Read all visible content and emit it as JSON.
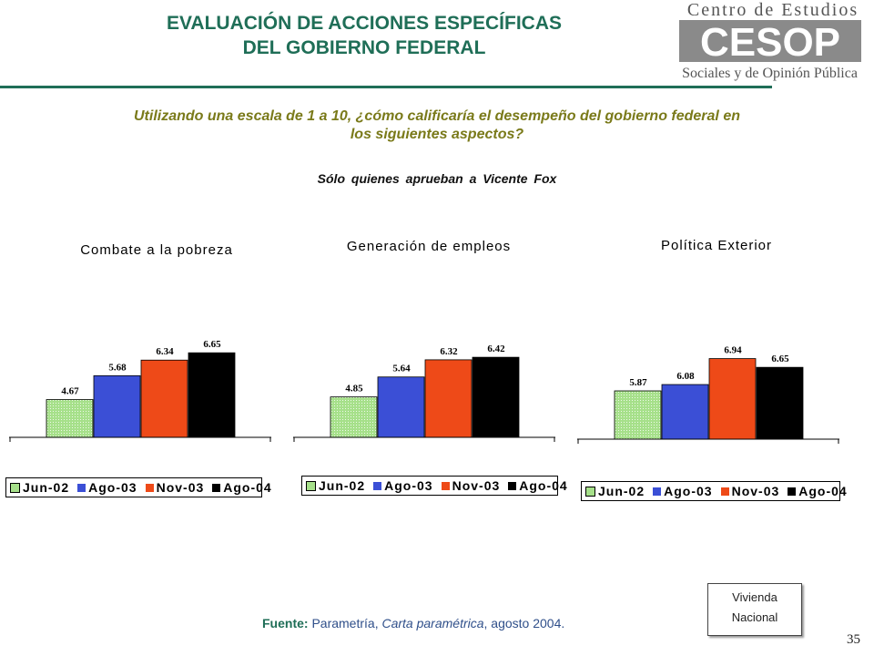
{
  "header": {
    "title_line1": "EVALUACIÓN DE ACCIONES ESPECÍFICAS",
    "title_line2": "DEL GOBIERNO FEDERAL"
  },
  "logo": {
    "top_text": "Centro de Estudios",
    "mark_text": "CESOP",
    "bottom_text": "Sociales y de Opinión Pública"
  },
  "question_line1": "Utilizando una escala de 1 a 10, ¿cómo calificaría el desempeño del gobierno federal en",
  "question_line2": "los siguientes aspectos?",
  "subset_note": "Sólo quienes aprueban a Vicente Fox",
  "colors": {
    "Jun-02": "#a6e08a",
    "Ago-03": "#3b4fd6",
    "Nov-03": "#ee4a18",
    "Ago-04": "#000000",
    "title_green": "#1f6e57",
    "question_olive": "#7a7a1a"
  },
  "chart_data": [
    {
      "type": "bar",
      "title": "Combate a la pobreza",
      "categories": [
        "Jun-02",
        "Ago-03",
        "Nov-03",
        "Ago-04"
      ],
      "values": [
        4.67,
        5.68,
        6.34,
        6.65
      ],
      "value_labels": [
        "4.67",
        "5.68",
        "6.34",
        "6.65"
      ],
      "legend": [
        "Jun-02",
        "Ago-03",
        "Nov-03",
        "Ago-04"
      ],
      "legend_position": "bottom"
    },
    {
      "type": "bar",
      "title": "Generación de empleos",
      "categories": [
        "Jun-02",
        "Ago-03",
        "Nov-03",
        "Ago-04"
      ],
      "values": [
        4.85,
        5.64,
        6.32,
        6.42
      ],
      "value_labels": [
        "4.85",
        "5.64",
        "6.32",
        "6.42"
      ],
      "legend": [
        "Jun-02",
        "Ago-03",
        "Nov-03",
        "Ago-04"
      ],
      "legend_position": "bottom"
    },
    {
      "type": "bar",
      "title": "Política Exterior",
      "categories": [
        "Jun-02",
        "Ago-03",
        "Nov-03",
        "Ago-04"
      ],
      "values": [
        5.87,
        6.08,
        6.94,
        6.65
      ],
      "value_labels": [
        "5.87",
        "6.08",
        "6.94",
        "6.65"
      ],
      "legend": [
        "Jun-02",
        "Ago-03",
        "Nov-03",
        "Ago-04"
      ],
      "legend_position": "bottom"
    }
  ],
  "source": {
    "label": "Fuente:",
    "text1": " Parametría, ",
    "publication": "Carta paramétrica",
    "text2": ", agosto 2004."
  },
  "note_box": {
    "line1": "Vivienda",
    "line2": "Nacional"
  },
  "page_number": "35"
}
